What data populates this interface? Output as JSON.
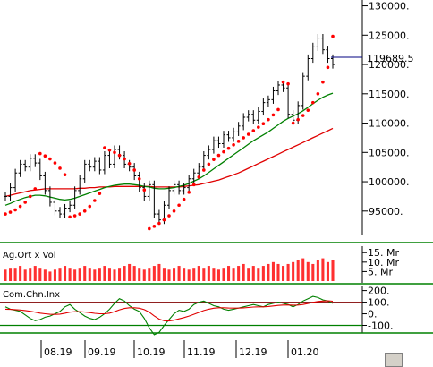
{
  "chart_data": [
    {
      "type": "line",
      "subtype": "ohlc-bar",
      "title": "",
      "ylim": [
        91000,
        131000
      ],
      "y_ticks": [
        "95000.",
        "100000.",
        "105000.",
        "110000.",
        "115000.",
        "120000.",
        "125000.",
        "130000."
      ],
      "last_value_label": "119689.5",
      "x_ticks": [
        "08.19",
        "09.19",
        "10.19",
        "11.19",
        "12.19",
        "01.20"
      ],
      "close": [
        97500,
        99000,
        101500,
        103000,
        102500,
        104000,
        103200,
        101000,
        98500,
        96500,
        95000,
        94500,
        95500,
        96000,
        98500,
        100500,
        103000,
        102500,
        103500,
        102000,
        104500,
        103000,
        105500,
        104500,
        103000,
        102500,
        101000,
        99000,
        97500,
        99500,
        94500,
        93500,
        96000,
        98500,
        99500,
        98500,
        99000,
        100500,
        101500,
        102500,
        104500,
        105500,
        107000,
        106500,
        108000,
        107500,
        108500,
        109500,
        111000,
        111500,
        110500,
        112000,
        113500,
        114000,
        115500,
        116500,
        116000,
        111500,
        110500,
        113000,
        118000,
        121000,
        123000,
        124500,
        122500,
        121000,
        120000
      ],
      "sar": [
        94500,
        94800,
        95200,
        95800,
        96500,
        97500,
        98800,
        104800,
        104400,
        103900,
        103200,
        102300,
        101200,
        94000,
        94200,
        94500,
        95000,
        95800,
        96800,
        98000,
        105800,
        105400,
        105000,
        104500,
        103900,
        103100,
        102000,
        100500,
        98600,
        92000,
        92400,
        92900,
        93500,
        94200,
        95000,
        96000,
        97000,
        98200,
        99500,
        100800,
        102000,
        103000,
        103800,
        104500,
        105100,
        105700,
        106300,
        106900,
        107500,
        108100,
        108700,
        109300,
        109900,
        110600,
        111400,
        112300,
        117000,
        116700,
        110000,
        110600,
        111300,
        112200,
        113500,
        115000,
        117000,
        119500,
        124800
      ],
      "ma_green": [
        96000,
        96300,
        96700,
        97000,
        97300,
        97500,
        97700,
        97700,
        97600,
        97400,
        97200,
        97000,
        96900,
        97000,
        97200,
        97500,
        97800,
        98100,
        98400,
        98700,
        99000,
        99200,
        99400,
        99500,
        99600,
        99600,
        99500,
        99400,
        99200,
        99100,
        98900,
        98800,
        98800,
        98900,
        99000,
        99200,
        99400,
        99700,
        100100,
        100500,
        101000,
        101600,
        102200,
        102800,
        103400,
        104000,
        104600,
        105200,
        105800,
        106400,
        107000,
        107500,
        108000,
        108500,
        109100,
        109700,
        110300,
        110800,
        111200,
        111600,
        112100,
        112700,
        113300,
        113900,
        114400,
        114800,
        115100
      ],
      "ma_red": [
        97500,
        97700,
        97900,
        98100,
        98300,
        98500,
        98600,
        98700,
        98800,
        98800,
        98800,
        98800,
        98800,
        98800,
        98800,
        98900,
        98900,
        99000,
        99000,
        99100,
        99100,
        99100,
        99200,
        99200,
        99200,
        99200,
        99200,
        99200,
        99200,
        99200,
        99100,
        99100,
        99100,
        99100,
        99100,
        99100,
        99200,
        99300,
        99400,
        99500,
        99700,
        99900,
        100100,
        100300,
        100600,
        100900,
        101200,
        101500,
        101900,
        102300,
        102700,
        103100,
        103500,
        103900,
        104300,
        104700,
        105100,
        105500,
        105900,
        106300,
        106700,
        107100,
        107500,
        107900,
        108300,
        108700,
        109100
      ]
    },
    {
      "type": "bar",
      "title": "Ag.Ort x Vol",
      "y_ticks": [
        "5. Mr",
        "10. Mr",
        "15. Mr"
      ],
      "ylim": [
        0,
        17
      ],
      "values": [
        6,
        7,
        7,
        8,
        6,
        7,
        8,
        7,
        6,
        5,
        6,
        7,
        8,
        7,
        6,
        7,
        8,
        7,
        6,
        7,
        8,
        7,
        6,
        7,
        8,
        9,
        8,
        7,
        6,
        7,
        8,
        9,
        7,
        6,
        7,
        8,
        7,
        6,
        7,
        8,
        7,
        8,
        7,
        6,
        7,
        8,
        7,
        8,
        9,
        7,
        8,
        7,
        8,
        9,
        10,
        9,
        8,
        9,
        10,
        11,
        12,
        10,
        9,
        11,
        12,
        10,
        11
      ]
    },
    {
      "type": "line",
      "title": "Com.Chn.Inx",
      "y_ticks": [
        "200.",
        "100.",
        "0.",
        "-100."
      ],
      "ylim": [
        -150,
        220
      ],
      "cci": [
        60,
        40,
        30,
        20,
        -10,
        -40,
        -60,
        -50,
        -30,
        -20,
        0,
        20,
        60,
        80,
        40,
        10,
        -20,
        -40,
        -50,
        -30,
        0,
        40,
        90,
        130,
        110,
        70,
        40,
        20,
        -40,
        -120,
        -180,
        -160,
        -100,
        -50,
        0,
        30,
        20,
        40,
        80,
        100,
        110,
        90,
        70,
        60,
        40,
        30,
        40,
        50,
        60,
        70,
        80,
        70,
        60,
        80,
        90,
        100,
        90,
        80,
        60,
        80,
        110,
        130,
        150,
        140,
        120,
        110,
        90
      ],
      "signal": [
        40,
        38,
        36,
        33,
        28,
        22,
        14,
        6,
        0,
        -4,
        -5,
        -3,
        5,
        14,
        18,
        18,
        15,
        10,
        4,
        0,
        0,
        6,
        18,
        34,
        46,
        52,
        52,
        48,
        36,
        14,
        -18,
        -46,
        -60,
        -62,
        -55,
        -44,
        -33,
        -20,
        -4,
        12,
        28,
        40,
        48,
        52,
        52,
        50,
        49,
        49,
        51,
        54,
        58,
        60,
        60,
        63,
        67,
        72,
        75,
        76,
        74,
        75,
        80,
        88,
        98,
        106,
        110,
        111,
        108
      ]
    }
  ]
}
